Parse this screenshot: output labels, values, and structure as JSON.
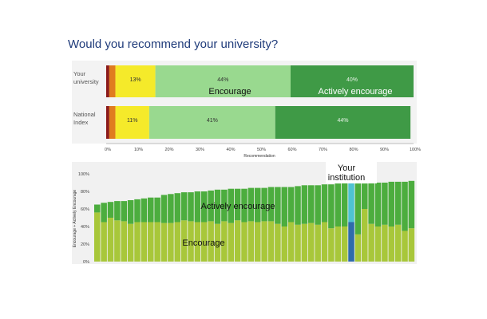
{
  "title": "Would you recommend your university?",
  "chart_data": [
    {
      "type": "bar",
      "orientation": "horizontal-stacked",
      "categories": [
        "Your university",
        "National Index"
      ],
      "category_lines": [
        [
          "Your",
          "university"
        ],
        [
          "National",
          "Index"
        ]
      ],
      "series": [
        {
          "key": "actively_discourage",
          "values": [
            1,
            1
          ],
          "color": "#8b1a1a",
          "labels": [
            "",
            ""
          ]
        },
        {
          "key": "discourage",
          "values": [
            2,
            2
          ],
          "color": "#e07c1f",
          "labels": [
            "",
            ""
          ]
        },
        {
          "key": "neutral",
          "values": [
            13,
            11
          ],
          "color": "#f5ea2a",
          "labels": [
            "13%",
            "11%"
          ]
        },
        {
          "name": "Encourage",
          "values": [
            44,
            41
          ],
          "color": "#99d98f",
          "labels": [
            "44%",
            "41%"
          ]
        },
        {
          "name": "Actively encourage",
          "values": [
            40,
            44
          ],
          "color": "#3f9a46",
          "labels": [
            "40%",
            "44%"
          ]
        }
      ],
      "overlay_labels": {
        "encourage": "Encourage",
        "actively": "Actively encourage"
      },
      "xlabel": "Recommendation",
      "xticks": [
        "0%",
        "10%",
        "20%",
        "30%",
        "40%",
        "50%",
        "60%",
        "70%",
        "80%",
        "90%",
        "100%"
      ],
      "xlim": [
        0,
        100
      ]
    },
    {
      "type": "bar",
      "orientation": "vertical-stacked",
      "ylabel": "Encourage + Actively Encourage",
      "yticks": [
        "0%",
        "20%",
        "40%",
        "60%",
        "80%",
        "100%"
      ],
      "ylim": [
        0,
        100
      ],
      "highlight_index": 38,
      "highlight_label_lines": [
        "Your",
        "institution"
      ],
      "overlay_labels": {
        "actively": "Actively encourage",
        "encourage": "Encourage"
      },
      "series": [
        {
          "name": "Encourage",
          "color": "#a8c73a",
          "highlight_color": "#2f6bab",
          "values": [
            56,
            45,
            50,
            47,
            46,
            43,
            45,
            45,
            45,
            45,
            44,
            44,
            45,
            47,
            46,
            45,
            45,
            46,
            43,
            46,
            44,
            47,
            45,
            46,
            45,
            46,
            46,
            43,
            40,
            45,
            42,
            43,
            44,
            42,
            45,
            38,
            40,
            40,
            45,
            31,
            60,
            43,
            40,
            42,
            40,
            42,
            35,
            38
          ]
        },
        {
          "name": "Actively encourage",
          "color": "#4cad3e",
          "highlight_color": "#4fc3d2",
          "values": [
            9,
            22,
            18,
            22,
            23,
            27,
            26,
            27,
            28,
            28,
            32,
            33,
            33,
            32,
            33,
            35,
            35,
            35,
            39,
            36,
            39,
            36,
            38,
            38,
            39,
            38,
            39,
            42,
            45,
            40,
            44,
            44,
            43,
            45,
            43,
            50,
            49,
            50,
            45,
            58,
            29,
            47,
            50,
            48,
            51,
            49,
            56,
            54
          ]
        }
      ]
    }
  ]
}
